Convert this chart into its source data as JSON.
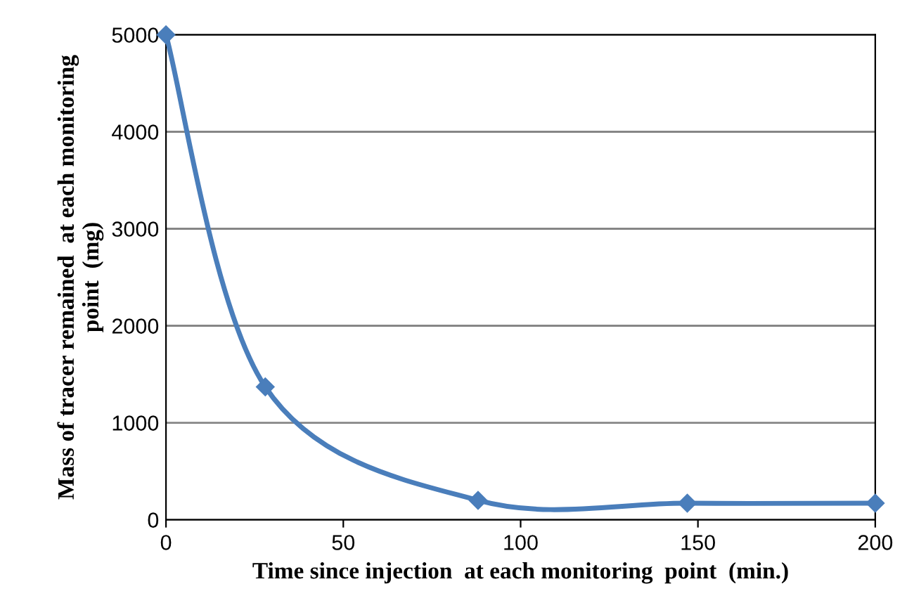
{
  "chart_data": {
    "type": "line",
    "xlabel": "Time since injection  at each monitoring  point  (min.)",
    "ylabel": "Mass of tracer remained  at each monitoring\npoint  (mg)",
    "x": [
      0,
      28,
      88,
      147,
      200
    ],
    "series": [
      {
        "color": "#4a7ebb",
        "values": [
          5000,
          1370,
          200,
          170,
          170
        ]
      }
    ],
    "xlim": [
      0,
      200
    ],
    "xticks": [
      0,
      50,
      100,
      150,
      200
    ],
    "ylim": [
      0,
      5000
    ],
    "yticks": [
      0,
      1000,
      2000,
      3000,
      4000,
      5000
    ],
    "grid": "y",
    "marker": "diamond",
    "line_style": "solid"
  }
}
